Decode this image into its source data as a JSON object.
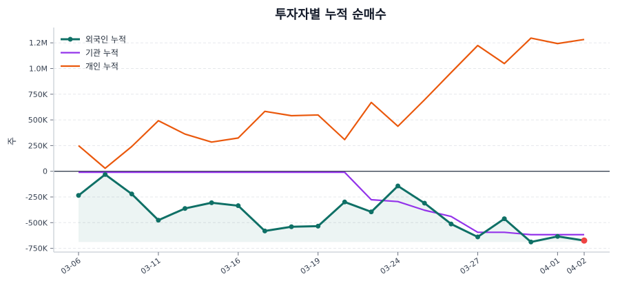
{
  "chart_data": {
    "type": "line",
    "title": "투자자별 누적 순매수",
    "xlabel": "",
    "ylabel": "주",
    "ylim": [
      -790000,
      1380000
    ],
    "grid": "horizontal dashed",
    "legend_position": "top-left",
    "x_ticks": [
      {
        "index": 0,
        "label": "03-06"
      },
      {
        "index": 3,
        "label": "03-11"
      },
      {
        "index": 6,
        "label": "03-16"
      },
      {
        "index": 9,
        "label": "03-19"
      },
      {
        "index": 12,
        "label": "03-24"
      },
      {
        "index": 15,
        "label": "03-27"
      },
      {
        "index": 18,
        "label": "04-01"
      },
      {
        "index": 19,
        "label": "04-02"
      }
    ],
    "y_ticks": [
      {
        "value": -750000,
        "label": "-750K"
      },
      {
        "value": -500000,
        "label": "-500K"
      },
      {
        "value": -250000,
        "label": "-250K"
      },
      {
        "value": 0,
        "label": "0"
      },
      {
        "value": 250000,
        "label": "250K"
      },
      {
        "value": 500000,
        "label": "500K"
      },
      {
        "value": 750000,
        "label": "750K"
      },
      {
        "value": 1000000,
        "label": "1.0M"
      },
      {
        "value": 1250000,
        "label": "1.2M"
      }
    ],
    "series": [
      {
        "name": "외국인 누적",
        "color": "#0f7066",
        "markers": true,
        "fill": true,
        "values": [
          -235000,
          -31000,
          -221000,
          -476000,
          -362000,
          -306000,
          -335000,
          -581000,
          -540000,
          -534000,
          -299000,
          -395000,
          -143000,
          -310000,
          -513000,
          -639000,
          -462000,
          -688000,
          -634000,
          -674000
        ]
      },
      {
        "name": "기관 누적",
        "color": "#9333ea",
        "markers": false,
        "values": [
          -10000,
          -10000,
          -10000,
          -10000,
          -10000,
          -10000,
          -10000,
          -10000,
          -10000,
          -10000,
          -10000,
          -277000,
          -295000,
          -379000,
          -440000,
          -594000,
          -594000,
          -617000,
          -617000,
          -617000
        ]
      },
      {
        "name": "개인 누적",
        "color": "#ea580c",
        "markers": false,
        "values": [
          250000,
          29000,
          241000,
          492000,
          362000,
          284000,
          324000,
          583000,
          541000,
          548000,
          308000,
          670000,
          438000,
          695000,
          961000,
          1224000,
          1048000,
          1296000,
          1243000,
          1283000
        ]
      }
    ],
    "highlight_last_color": "#ef4444",
    "zero_line_color": "#374151"
  }
}
